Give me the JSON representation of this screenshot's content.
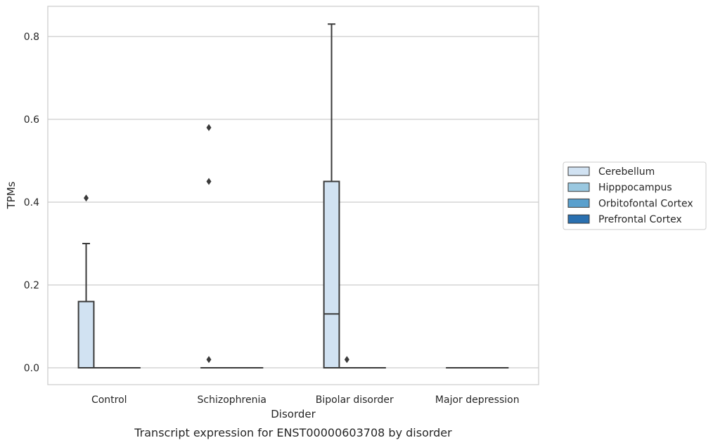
{
  "chart_data": {
    "type": "box",
    "title": "",
    "caption": "Transcript expression for ENST00000603708 by disorder",
    "xlabel": "Disorder",
    "ylabel": "TPMs",
    "ylim": [
      -0.04,
      0.875
    ],
    "yticks": [
      0.0,
      0.2,
      0.4,
      0.6,
      0.8
    ],
    "ytick_labels": [
      "0.0",
      "0.2",
      "0.4",
      "0.6",
      "0.8"
    ],
    "grid": "horizontal",
    "legend_position": "right",
    "categories": [
      "Control",
      "Schizophrenia",
      "Bipolar disorder",
      "Major depression"
    ],
    "series": [
      {
        "name": "Cerebellum",
        "color": "#d1e2f2",
        "boxes": [
          {
            "category": "Control",
            "q1": 0.0,
            "median": 0.0,
            "q3": 0.16,
            "whisker_low": 0.0,
            "whisker_high": 0.3,
            "outliers": [
              0.41
            ]
          },
          {
            "category": "Schizophrenia",
            "q1": 0.0,
            "median": 0.0,
            "q3": 0.0,
            "whisker_low": 0.0,
            "whisker_high": 0.0,
            "outliers": [
              0.02,
              0.45,
              0.58
            ]
          },
          {
            "category": "Bipolar disorder",
            "q1": 0.0,
            "median": 0.13,
            "q3": 0.45,
            "whisker_low": 0.0,
            "whisker_high": 0.83,
            "outliers": []
          },
          {
            "category": "Major depression",
            "q1": 0.0,
            "median": 0.0,
            "q3": 0.0,
            "whisker_low": 0.0,
            "whisker_high": 0.0,
            "outliers": []
          }
        ]
      },
      {
        "name": "Hipppocampus",
        "color": "#9ac8e0",
        "boxes": [
          {
            "category": "Control",
            "q1": 0.0,
            "median": 0.0,
            "q3": 0.0,
            "whisker_low": 0.0,
            "whisker_high": 0.0,
            "outliers": []
          },
          {
            "category": "Schizophrenia",
            "q1": 0.0,
            "median": 0.0,
            "q3": 0.0,
            "whisker_low": 0.0,
            "whisker_high": 0.0,
            "outliers": []
          },
          {
            "category": "Bipolar disorder",
            "q1": 0.0,
            "median": 0.0,
            "q3": 0.0,
            "whisker_low": 0.0,
            "whisker_high": 0.0,
            "outliers": [
              0.02
            ]
          },
          {
            "category": "Major depression",
            "q1": 0.0,
            "median": 0.0,
            "q3": 0.0,
            "whisker_low": 0.0,
            "whisker_high": 0.0,
            "outliers": []
          }
        ]
      },
      {
        "name": "Orbitofontal Cortex",
        "color": "#5aa0cd",
        "boxes": [
          {
            "category": "Control",
            "q1": 0.0,
            "median": 0.0,
            "q3": 0.0,
            "whisker_low": 0.0,
            "whisker_high": 0.0,
            "outliers": []
          },
          {
            "category": "Schizophrenia",
            "q1": 0.0,
            "median": 0.0,
            "q3": 0.0,
            "whisker_low": 0.0,
            "whisker_high": 0.0,
            "outliers": []
          },
          {
            "category": "Bipolar disorder",
            "q1": 0.0,
            "median": 0.0,
            "q3": 0.0,
            "whisker_low": 0.0,
            "whisker_high": 0.0,
            "outliers": []
          },
          {
            "category": "Major depression",
            "q1": 0.0,
            "median": 0.0,
            "q3": 0.0,
            "whisker_low": 0.0,
            "whisker_high": 0.0,
            "outliers": []
          }
        ]
      },
      {
        "name": "Prefrontal Cortex",
        "color": "#2a70b0",
        "boxes": [
          {
            "category": "Control",
            "q1": 0.0,
            "median": 0.0,
            "q3": 0.0,
            "whisker_low": 0.0,
            "whisker_high": 0.0,
            "outliers": []
          },
          {
            "category": "Schizophrenia",
            "q1": 0.0,
            "median": 0.0,
            "q3": 0.0,
            "whisker_low": 0.0,
            "whisker_high": 0.0,
            "outliers": []
          },
          {
            "category": "Bipolar disorder",
            "q1": 0.0,
            "median": 0.0,
            "q3": 0.0,
            "whisker_low": 0.0,
            "whisker_high": 0.0,
            "outliers": []
          },
          {
            "category": "Major depression",
            "q1": 0.0,
            "median": 0.0,
            "q3": 0.0,
            "whisker_low": 0.0,
            "whisker_high": 0.0,
            "outliers": []
          }
        ]
      }
    ]
  }
}
